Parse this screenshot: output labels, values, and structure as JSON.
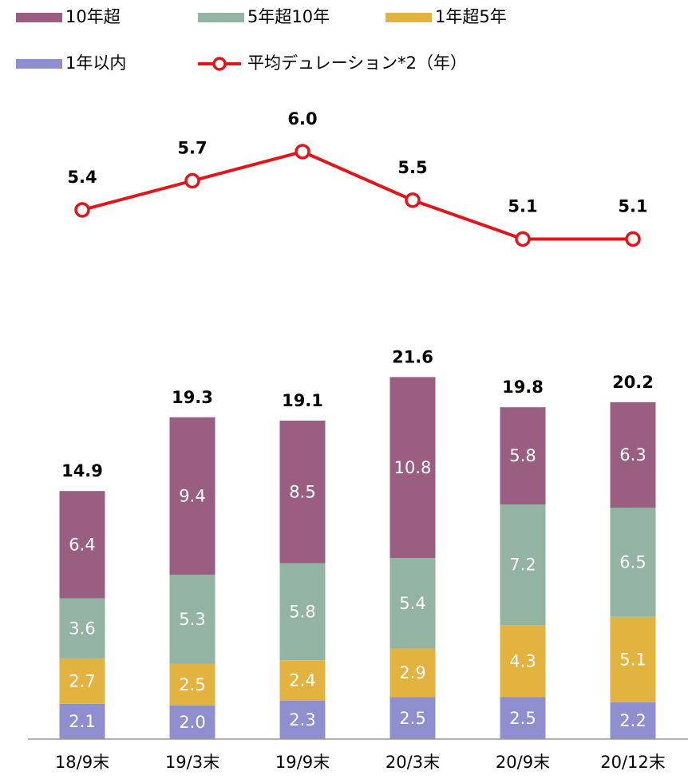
{
  "chart_data": {
    "type": "bar",
    "categories": [
      "18/9末",
      "19/3末",
      "19/9末",
      "20/3末",
      "20/9末",
      "20/12末"
    ],
    "series": [
      {
        "name": "10年超",
        "color": "#9a5f80",
        "values": [
          6.4,
          9.4,
          8.5,
          10.8,
          5.8,
          6.3
        ]
      },
      {
        "name": "5年超10年",
        "color": "#93b3a3",
        "values": [
          3.6,
          5.3,
          5.8,
          5.4,
          7.2,
          6.5
        ]
      },
      {
        "name": "1年超5年",
        "color": "#e2b33e",
        "values": [
          2.7,
          2.5,
          2.4,
          2.9,
          4.3,
          5.1
        ]
      },
      {
        "name": "1年以内",
        "color": "#8f8fcf",
        "values": [
          2.1,
          2.0,
          2.3,
          2.5,
          2.5,
          2.2
        ],
        "value_labels": [
          "2.1",
          "2.0",
          "2.3",
          "2.5",
          "2.5",
          "2.2"
        ]
      },
      {
        "name": "平均デュレーション*2（年）",
        "color": "#e0161b",
        "type": "line",
        "axis": "y2",
        "values": [
          5.4,
          5.7,
          6.0,
          5.5,
          5.1,
          5.1
        ],
        "value_labels": [
          "5.4",
          "5.7",
          "6.0",
          "5.5",
          "5.1",
          "5.1"
        ]
      }
    ],
    "totals": [
      14.9,
      19.3,
      19.1,
      21.6,
      19.8,
      20.2
    ],
    "ylim": [
      0,
      22
    ],
    "y2lim": [
      4.5,
      6.3
    ]
  }
}
